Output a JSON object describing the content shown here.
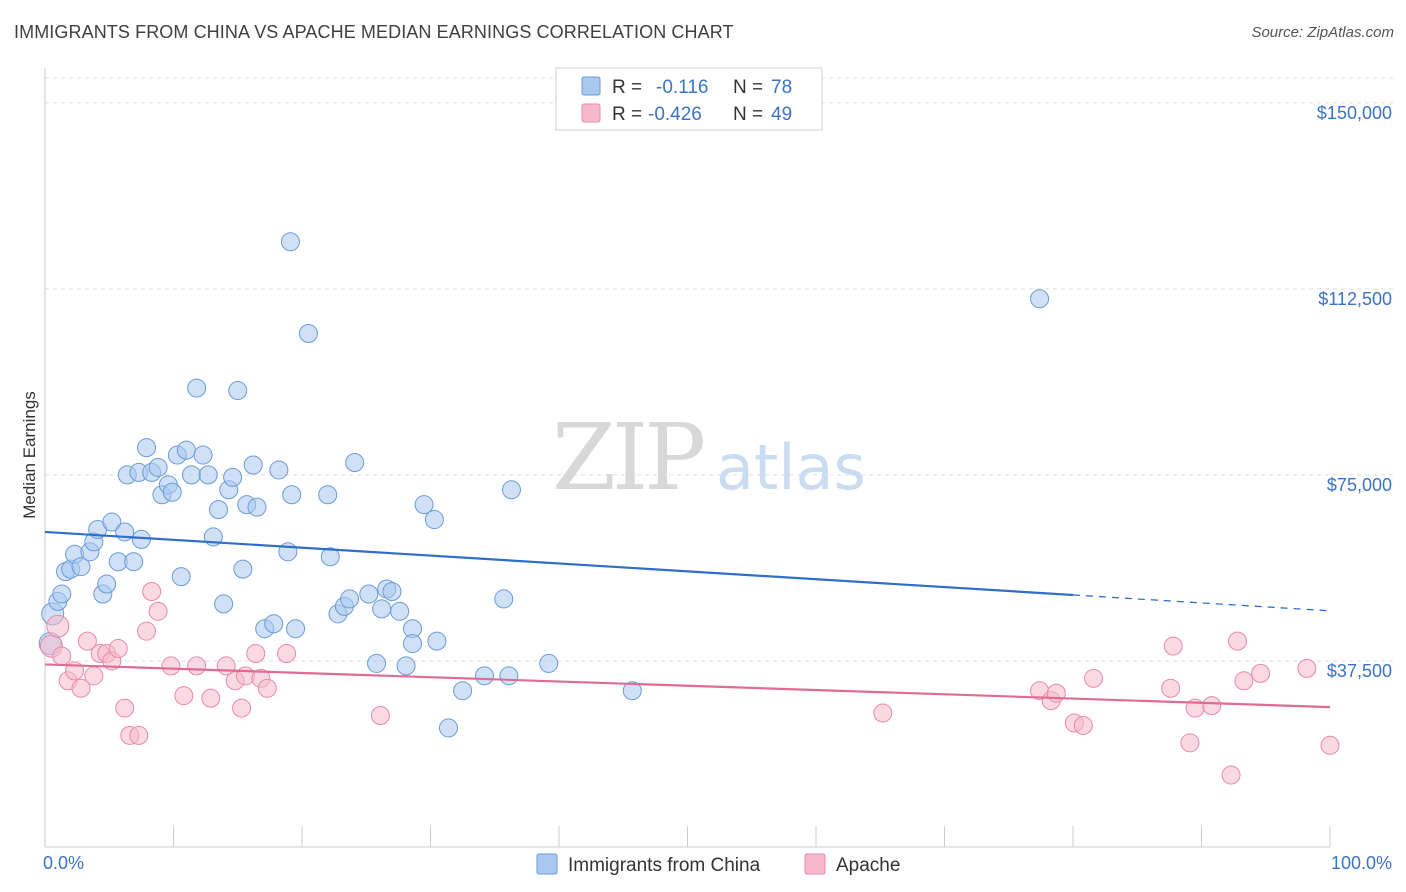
{
  "header": {
    "title": "IMMIGRANTS FROM CHINA VS APACHE MEDIAN EARNINGS CORRELATION CHART",
    "source": "Source: ZipAtlas.com"
  },
  "watermark": {
    "part1": "ZIP",
    "part2": "atlas"
  },
  "legend_top": [
    {
      "r_label": "R =",
      "r_value": "-0.116",
      "n_label": "N =",
      "n_value": "78",
      "color": "#a9c9f0"
    },
    {
      "r_label": "R =",
      "r_value": "-0.426",
      "n_label": "N =",
      "n_value": "49",
      "color": "#f6b9cc"
    }
  ],
  "chart_data": {
    "type": "scatter",
    "title": "IMMIGRANTS FROM CHINA VS APACHE MEDIAN EARNINGS CORRELATION CHART",
    "xlabel": "",
    "ylabel": "Median Earnings",
    "xlim": [
      0,
      100
    ],
    "ylim": [
      0,
      155000
    ],
    "x_tick_labels": [
      "0.0%",
      "100.0%"
    ],
    "y_ticks": [
      37500,
      75000,
      112500,
      150000
    ],
    "y_tick_labels": [
      "$37,500",
      "$75,000",
      "$112,500",
      "$150,000"
    ],
    "grid": true,
    "legend_position": "top-center",
    "series": [
      {
        "name": "Immigrants from China",
        "color": "#a9c9f0",
        "edge": "#6a9bd8",
        "line_color": "#2f6fca",
        "trend": {
          "x0": 0,
          "y0": 63500,
          "x1": 80,
          "y1": 50800,
          "dash_to_x": 100,
          "dash_to_y": 47600
        },
        "points": [
          [
            0.4,
            41000
          ],
          [
            0.6,
            47000
          ],
          [
            1.0,
            49500
          ],
          [
            1.3,
            51000
          ],
          [
            1.6,
            55500
          ],
          [
            2.0,
            56000
          ],
          [
            2.3,
            59000
          ],
          [
            2.8,
            56500
          ],
          [
            3.5,
            59500
          ],
          [
            3.8,
            61500
          ],
          [
            4.1,
            64000
          ],
          [
            4.5,
            51000
          ],
          [
            4.8,
            53000
          ],
          [
            5.2,
            65500
          ],
          [
            5.7,
            57500
          ],
          [
            6.2,
            63500
          ],
          [
            6.9,
            57500
          ],
          [
            7.5,
            62000
          ],
          [
            6.4,
            75000
          ],
          [
            7.3,
            75500
          ],
          [
            7.9,
            80500
          ],
          [
            8.3,
            75500
          ],
          [
            8.8,
            76500
          ],
          [
            9.1,
            71000
          ],
          [
            9.6,
            73000
          ],
          [
            9.9,
            71500
          ],
          [
            10.3,
            79000
          ],
          [
            10.6,
            54500
          ],
          [
            11.0,
            80000
          ],
          [
            11.4,
            75000
          ],
          [
            11.8,
            92500
          ],
          [
            12.3,
            79000
          ],
          [
            12.7,
            75000
          ],
          [
            13.1,
            62500
          ],
          [
            13.5,
            68000
          ],
          [
            13.9,
            49000
          ],
          [
            14.3,
            72000
          ],
          [
            14.6,
            74500
          ],
          [
            15.0,
            92000
          ],
          [
            15.4,
            56000
          ],
          [
            15.7,
            69000
          ],
          [
            16.2,
            77000
          ],
          [
            16.5,
            68500
          ],
          [
            17.1,
            44000
          ],
          [
            17.8,
            45000
          ],
          [
            18.2,
            76000
          ],
          [
            18.9,
            59500
          ],
          [
            19.2,
            71000
          ],
          [
            19.5,
            44000
          ],
          [
            19.1,
            122000
          ],
          [
            20.5,
            103500
          ],
          [
            22.0,
            71000
          ],
          [
            22.2,
            58500
          ],
          [
            22.8,
            47000
          ],
          [
            23.3,
            48500
          ],
          [
            23.7,
            50000
          ],
          [
            24.1,
            77500
          ],
          [
            25.2,
            51000
          ],
          [
            25.8,
            37000
          ],
          [
            26.2,
            48000
          ],
          [
            26.6,
            52000
          ],
          [
            27.0,
            51500
          ],
          [
            27.6,
            47500
          ],
          [
            28.1,
            36500
          ],
          [
            28.6,
            44000
          ],
          [
            28.6,
            41000
          ],
          [
            29.5,
            69000
          ],
          [
            30.3,
            66000
          ],
          [
            30.5,
            41500
          ],
          [
            31.4,
            24000
          ],
          [
            32.5,
            31500
          ],
          [
            34.2,
            34500
          ],
          [
            36.1,
            34500
          ],
          [
            36.3,
            72000
          ],
          [
            35.7,
            50000
          ],
          [
            39.2,
            37000
          ],
          [
            45.7,
            31500
          ],
          [
            77.4,
            110500
          ]
        ]
      },
      {
        "name": "Apache",
        "color": "#f6b9cc",
        "edge": "#e98aa8",
        "line_color": "#e06b95",
        "trend": {
          "x0": 0,
          "y0": 36800,
          "x1": 100,
          "y1": 28200
        },
        "points": [
          [
            0.5,
            40500
          ],
          [
            1.0,
            44500
          ],
          [
            1.3,
            38500
          ],
          [
            1.8,
            33500
          ],
          [
            2.3,
            35500
          ],
          [
            2.8,
            32000
          ],
          [
            3.3,
            41500
          ],
          [
            3.8,
            34500
          ],
          [
            4.3,
            39000
          ],
          [
            4.8,
            39000
          ],
          [
            5.2,
            37500
          ],
          [
            5.7,
            40000
          ],
          [
            6.2,
            28000
          ],
          [
            6.6,
            22500
          ],
          [
            7.3,
            22500
          ],
          [
            7.9,
            43500
          ],
          [
            8.3,
            51500
          ],
          [
            8.8,
            47500
          ],
          [
            9.8,
            36500
          ],
          [
            10.8,
            30500
          ],
          [
            11.8,
            36500
          ],
          [
            12.9,
            30000
          ],
          [
            14.1,
            36500
          ],
          [
            14.8,
            33500
          ],
          [
            15.3,
            28000
          ],
          [
            15.6,
            34500
          ],
          [
            16.4,
            39000
          ],
          [
            16.8,
            34000
          ],
          [
            17.3,
            32000
          ],
          [
            18.8,
            39000
          ],
          [
            26.1,
            26500
          ],
          [
            65.2,
            27000
          ],
          [
            77.4,
            31500
          ],
          [
            78.3,
            29500
          ],
          [
            78.7,
            31000
          ],
          [
            80.1,
            25000
          ],
          [
            80.8,
            24500
          ],
          [
            81.6,
            34000
          ],
          [
            87.6,
            32000
          ],
          [
            87.8,
            40500
          ],
          [
            89.1,
            21000
          ],
          [
            89.5,
            28000
          ],
          [
            90.8,
            28500
          ],
          [
            92.3,
            14500
          ],
          [
            92.8,
            41500
          ],
          [
            93.3,
            33500
          ],
          [
            94.6,
            35000
          ],
          [
            98.2,
            36000
          ],
          [
            100.0,
            20500
          ]
        ]
      }
    ]
  },
  "legend_bottom": [
    {
      "label": "Immigrants from China",
      "color": "#a9c9f0"
    },
    {
      "label": "Apache",
      "color": "#f6b9cc"
    }
  ]
}
